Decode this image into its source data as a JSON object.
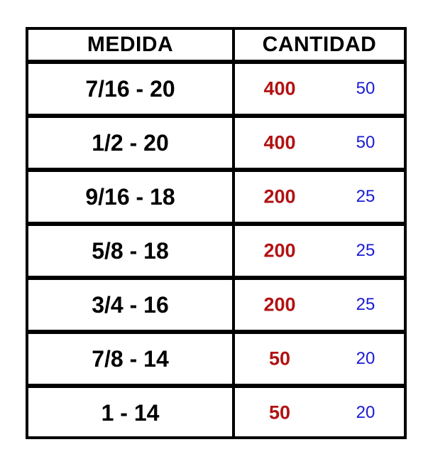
{
  "table": {
    "headers": {
      "medida": "MEDIDA",
      "cantidad": "CANTIDAD"
    },
    "rows": [
      {
        "medida": "7/16 - 20",
        "cantidad": "400",
        "cantidad_alt": "50"
      },
      {
        "medida": "1/2 - 20",
        "cantidad": "400",
        "cantidad_alt": "50"
      },
      {
        "medida": "9/16 - 18",
        "cantidad": "200",
        "cantidad_alt": "25"
      },
      {
        "medida": "5/8 - 18",
        "cantidad": "200",
        "cantidad_alt": "25"
      },
      {
        "medida": "3/4 - 16",
        "cantidad": "200",
        "cantidad_alt": "25"
      },
      {
        "medida": "7/8 - 14",
        "cantidad": "50",
        "cantidad_alt": "20"
      },
      {
        "medida": "1 - 14",
        "cantidad": "50",
        "cantidad_alt": "20"
      }
    ]
  },
  "colors": {
    "border": "#000000",
    "medida_text": "#000000",
    "cantidad_text": "#b21212",
    "cantidad_alt_text": "#1a1ad6"
  }
}
